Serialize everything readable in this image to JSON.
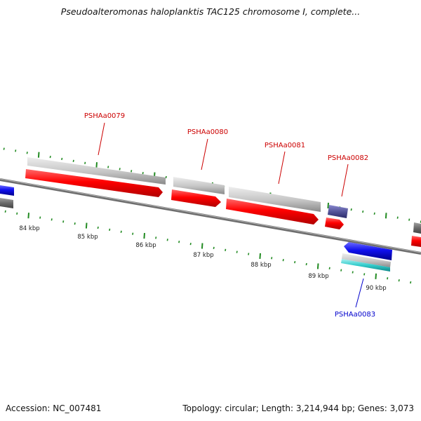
{
  "title": "Pseudoalteromonas haloplanktis TAC125 chromosome I, complete...",
  "footer": {
    "accession": "Accession: NC_007481",
    "topology": "Topology: circular; Length: 3,214,944 bp; Genes: 3,073"
  },
  "ruler_labels": [
    "84 kbp",
    "85 kbp",
    "86 kbp",
    "87 kbp",
    "88 kbp",
    "89 kbp",
    "90 kbp"
  ],
  "gene_labels": {
    "g79": "PSHAa0079",
    "g80": "PSHAa0080",
    "g81": "PSHAa0081",
    "g82": "PSHAa0082",
    "g83": "PSHAa0083"
  },
  "colors": {
    "forward_cds": "#ff0000",
    "reverse_cds": "#1010ee",
    "gene_bar": "#c4c4c4",
    "trna": "#55559a",
    "backbone": "#808080",
    "tick": "#228b22",
    "forward_label": "#cc0000",
    "reverse_label": "#0000cc",
    "rna_track": "#33cccc"
  }
}
